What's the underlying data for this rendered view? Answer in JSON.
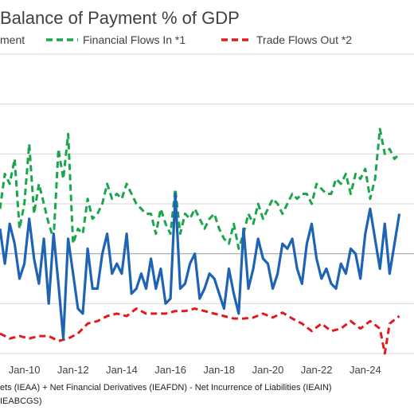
{
  "chart_data": {
    "type": "line",
    "title": "Balance of Payment % of GDP",
    "legend_position": "top",
    "grid": true,
    "x_tick_labels": [
      "Jan-10",
      "Jan-12",
      "Jan-14",
      "Jan-16",
      "Jan-18",
      "Jan-20",
      "Jan-22",
      "Jan-24"
    ],
    "x_range": [
      2009.0,
      2026.0
    ],
    "y_range_index": [
      0,
      6
    ],
    "series": [
      {
        "name": "Financial Flows In *1",
        "color": "#1aa64a",
        "dash": "dashed",
        "x": [
          2009.0,
          2009.2,
          2009.4,
          2009.6,
          2009.8,
          2010.0,
          2010.2,
          2010.4,
          2010.6,
          2010.8,
          2011.0,
          2011.2,
          2011.4,
          2011.6,
          2011.8,
          2012.0,
          2012.2,
          2012.4,
          2012.6,
          2012.8,
          2013.0,
          2013.2,
          2013.4,
          2013.6,
          2013.8,
          2014.0,
          2014.2,
          2014.4,
          2014.6,
          2014.8,
          2015.0,
          2015.2,
          2015.4,
          2015.6,
          2015.8,
          2016.0,
          2016.2,
          2016.4,
          2016.6,
          2016.8,
          2017.0,
          2017.2,
          2017.4,
          2017.6,
          2017.8,
          2018.0,
          2018.2,
          2018.4,
          2018.6,
          2018.8,
          2019.0,
          2019.2,
          2019.4,
          2019.6,
          2019.8,
          2020.0,
          2020.2,
          2020.4,
          2020.6,
          2020.8,
          2021.0,
          2021.2,
          2021.4,
          2021.6,
          2021.8,
          2022.0,
          2022.2,
          2022.4,
          2022.6,
          2022.8,
          2023.0,
          2023.2,
          2023.4,
          2023.6,
          2023.8,
          2024.0,
          2024.2,
          2024.4,
          2024.6,
          2024.8,
          2025.0,
          2025.2,
          2025.4
        ],
        "y": [
          2.9,
          3.6,
          3.4,
          3.9,
          2.5,
          3.0,
          4.2,
          2.8,
          3.4,
          3.0,
          2.6,
          2.3,
          4.1,
          3.5,
          4.4,
          2.2,
          2.5,
          2.4,
          3.1,
          2.7,
          2.8,
          3.0,
          3.4,
          3.1,
          3.2,
          3.1,
          3.4,
          3.2,
          3.0,
          2.9,
          2.8,
          2.8,
          2.4,
          2.9,
          2.6,
          2.4,
          3.3,
          2.4,
          2.8,
          2.7,
          2.9,
          2.7,
          2.5,
          2.7,
          2.8,
          2.5,
          2.3,
          2.2,
          2.6,
          2.1,
          2.4,
          2.8,
          2.6,
          3.0,
          2.7,
          2.9,
          3.1,
          3.0,
          2.8,
          3.0,
          3.2,
          3.1,
          3.2,
          3.2,
          3.0,
          3.4,
          3.3,
          3.2,
          3.2,
          3.5,
          3.4,
          3.6,
          3.2,
          3.6,
          3.5,
          3.7,
          3.1,
          3.5,
          4.5,
          4.0,
          4.1,
          3.9,
          4.0
        ]
      },
      {
        "name": "Trade Flows Out *2",
        "color": "#e31a1c",
        "dash": "dashed",
        "x": [
          2009.0,
          2009.4,
          2009.8,
          2010.2,
          2010.6,
          2011.0,
          2011.4,
          2011.8,
          2012.2,
          2012.6,
          2013.0,
          2013.4,
          2013.8,
          2014.2,
          2014.6,
          2015.0,
          2015.4,
          2015.8,
          2016.2,
          2016.6,
          2017.0,
          2017.4,
          2017.8,
          2018.2,
          2018.6,
          2019.0,
          2019.4,
          2019.8,
          2020.2,
          2020.6,
          2021.0,
          2021.4,
          2021.8,
          2022.2,
          2022.6,
          2023.0,
          2023.4,
          2023.8,
          2024.2,
          2024.6,
          2024.8,
          2025.0,
          2025.4
        ],
        "y": [
          0.4,
          0.3,
          0.35,
          0.3,
          0.35,
          0.35,
          0.25,
          0.3,
          0.4,
          0.6,
          0.65,
          0.75,
          0.8,
          0.75,
          0.9,
          0.8,
          0.8,
          0.8,
          0.85,
          0.85,
          0.9,
          0.85,
          0.8,
          0.75,
          0.7,
          0.7,
          0.72,
          0.8,
          0.72,
          0.82,
          0.7,
          0.6,
          0.45,
          0.6,
          0.45,
          0.5,
          0.65,
          0.5,
          0.65,
          0.5,
          0.0,
          0.6,
          0.75
        ]
      },
      {
        "name": "",
        "color": "#1f63b5",
        "dash": "solid",
        "x": [
          2009.0,
          2009.2,
          2009.4,
          2009.6,
          2009.8,
          2010.0,
          2010.2,
          2010.4,
          2010.6,
          2010.8,
          2011.0,
          2011.2,
          2011.4,
          2011.6,
          2011.8,
          2012.0,
          2012.2,
          2012.4,
          2012.6,
          2012.8,
          2013.0,
          2013.2,
          2013.4,
          2013.6,
          2013.8,
          2014.0,
          2014.2,
          2014.4,
          2014.6,
          2014.8,
          2015.0,
          2015.2,
          2015.4,
          2015.6,
          2015.8,
          2016.0,
          2016.2,
          2016.4,
          2016.6,
          2016.8,
          2017.0,
          2017.2,
          2017.4,
          2017.6,
          2017.8,
          2018.0,
          2018.2,
          2018.4,
          2018.6,
          2018.8,
          2019.0,
          2019.2,
          2019.4,
          2019.6,
          2019.8,
          2020.0,
          2020.2,
          2020.4,
          2020.6,
          2020.8,
          2021.0,
          2021.2,
          2021.4,
          2021.6,
          2021.8,
          2022.0,
          2022.2,
          2022.4,
          2022.6,
          2022.8,
          2023.0,
          2023.2,
          2023.4,
          2023.6,
          2023.8,
          2024.0,
          2024.2,
          2024.6,
          2024.8,
          2025.0,
          2025.4
        ],
        "y": [
          2.5,
          1.8,
          2.6,
          2.2,
          1.5,
          1.8,
          2.7,
          1.9,
          1.4,
          2.3,
          1.0,
          2.4,
          1.4,
          0.3,
          2.3,
          1.6,
          0.9,
          0.8,
          2.1,
          1.3,
          1.3,
          2.0,
          2.4,
          1.6,
          1.8,
          1.6,
          2.4,
          1.2,
          1.3,
          1.6,
          1.3,
          1.9,
          1.3,
          1.7,
          1.0,
          1.1,
          3.2,
          1.3,
          1.4,
          1.8,
          2.0,
          1.1,
          1.3,
          1.6,
          1.5,
          1.2,
          0.9,
          1.7,
          1.2,
          0.8,
          2.5,
          1.3,
          1.7,
          2.3,
          1.9,
          1.8,
          1.3,
          1.6,
          2.2,
          2.1,
          2.3,
          1.7,
          1.4,
          2.2,
          2.6,
          1.9,
          1.5,
          1.7,
          1.4,
          1.3,
          1.8,
          1.6,
          2.1,
          2.0,
          1.5,
          2.4,
          2.9,
          1.7,
          2.6,
          1.6,
          2.8
        ]
      }
    ]
  },
  "legend": {
    "partial_item": "ment",
    "financial": "Financial Flows In *1",
    "trade": "Trade Flows Out *2"
  },
  "footnotes": {
    "line1": "ets (IEAA) + Net Financial Derivatives (IEAFDN) - Net Incurrence of Liabilities (IEAIN)",
    "line2": "IEABCGS)"
  }
}
